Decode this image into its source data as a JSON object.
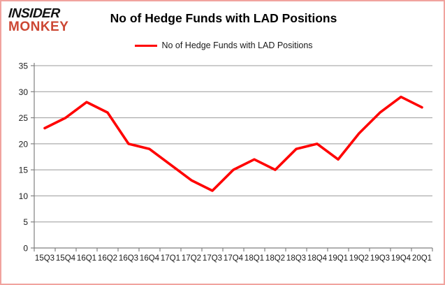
{
  "logo": {
    "line1": "INSIDER",
    "line2": "MONKEY"
  },
  "header": {
    "title": "No of Hedge Funds with LAD Positions"
  },
  "legend": {
    "label": "No of Hedge Funds with LAD Positions"
  },
  "colors": {
    "line": "#ff0000",
    "grid": "#999999",
    "axis": "#808080",
    "tick_text": "#1a1a1a",
    "border": "#f1a39e",
    "logo_black": "#141414",
    "logo_red": "#cc4733"
  },
  "chart_data": {
    "type": "line",
    "title": "No of Hedge Funds with LAD Positions",
    "categories": [
      "15Q3",
      "15Q4",
      "16Q1",
      "16Q2",
      "16Q3",
      "16Q4",
      "17Q1",
      "17Q2",
      "17Q3",
      "17Q4",
      "18Q1",
      "18Q2",
      "18Q3",
      "18Q4",
      "19Q1",
      "19Q2",
      "19Q3",
      "19Q4",
      "20Q1"
    ],
    "series": [
      {
        "name": "No of Hedge Funds with LAD Positions",
        "color": "#ff0000",
        "values": [
          23,
          25,
          28,
          26,
          20,
          19,
          16,
          13,
          11,
          15,
          17,
          15,
          19,
          20,
          17,
          22,
          26,
          29,
          27
        ]
      }
    ],
    "xlabel": "",
    "ylabel": "",
    "ylim": [
      0,
      35
    ],
    "ytick_step": 5,
    "grid": true,
    "legend_position": "top-center"
  }
}
